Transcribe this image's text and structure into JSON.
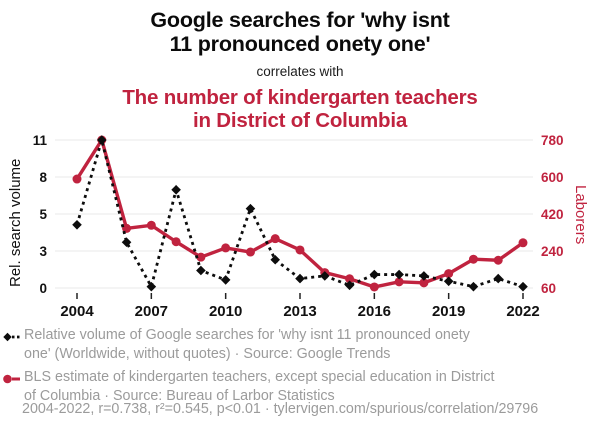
{
  "title": {
    "line1": "Google searches for 'why isnt",
    "line2": "11 pronounced onety one'",
    "connector": "correlates with",
    "sub_line1": "The number of kindergarten teachers",
    "sub_line2": "in District of Columbia"
  },
  "colors": {
    "accent_red": "#c0233f",
    "series_black": "#0d0d0d",
    "grid": "#e8e8e8",
    "tick_text": "#111111",
    "muted_text": "#9b9b9b"
  },
  "chart_data": {
    "type": "line",
    "x": [
      2004,
      2005,
      2006,
      2007,
      2008,
      2009,
      2010,
      2011,
      2012,
      2013,
      2014,
      2015,
      2016,
      2017,
      2018,
      2019,
      2020,
      2021,
      2022
    ],
    "x_tick_labels": [
      "2004",
      "2007",
      "2010",
      "2013",
      "2016",
      "2019",
      "2022"
    ],
    "left_axis": {
      "label": "Rel. search volume",
      "tick_labels": [
        "0",
        "3",
        "5",
        "8",
        "11"
      ],
      "range": [
        0,
        11
      ]
    },
    "right_axis": {
      "label": "Laborers",
      "tick_labels": [
        "60",
        "240",
        "420",
        "600",
        "780"
      ],
      "range": [
        60,
        780
      ]
    },
    "grid": true,
    "legend_position": "below",
    "series": [
      {
        "name": "Google searches for 'why isnt 11 pronounced onety one'",
        "axis": "left",
        "style": "black-dashed-diamond",
        "values": [
          4.7,
          11,
          3.4,
          0.1,
          7.3,
          1.3,
          0.6,
          5.9,
          2.1,
          0.7,
          0.9,
          0.2,
          1.0,
          1.0,
          0.9,
          0.5,
          0.1,
          0.7,
          0.1
        ]
      },
      {
        "name": "Kindergarten teachers in District of Columbia",
        "axis": "right",
        "style": "red-solid-circle",
        "values": [
          590,
          780,
          350,
          365,
          285,
          210,
          255,
          235,
          300,
          245,
          135,
          105,
          65,
          90,
          85,
          130,
          200,
          195,
          280
        ]
      }
    ]
  },
  "legend": {
    "entries": [
      {
        "marker": "black-diamond-dashed",
        "text": "Relative volume of Google searches for 'why isnt 11 pronounced onety one' (Worldwide, without quotes) · Source: Google Trends"
      },
      {
        "marker": "red-circle-solid",
        "text": "BLS estimate of kindergarten teachers, except special education in District of Columbia · Source: Bureau of Larbor Statistics"
      }
    ]
  },
  "footer": {
    "text": "2004-2022, r=0.738, r²=0.545, p<0.01 · tylervigen.com/spurious/correlation/29796"
  }
}
